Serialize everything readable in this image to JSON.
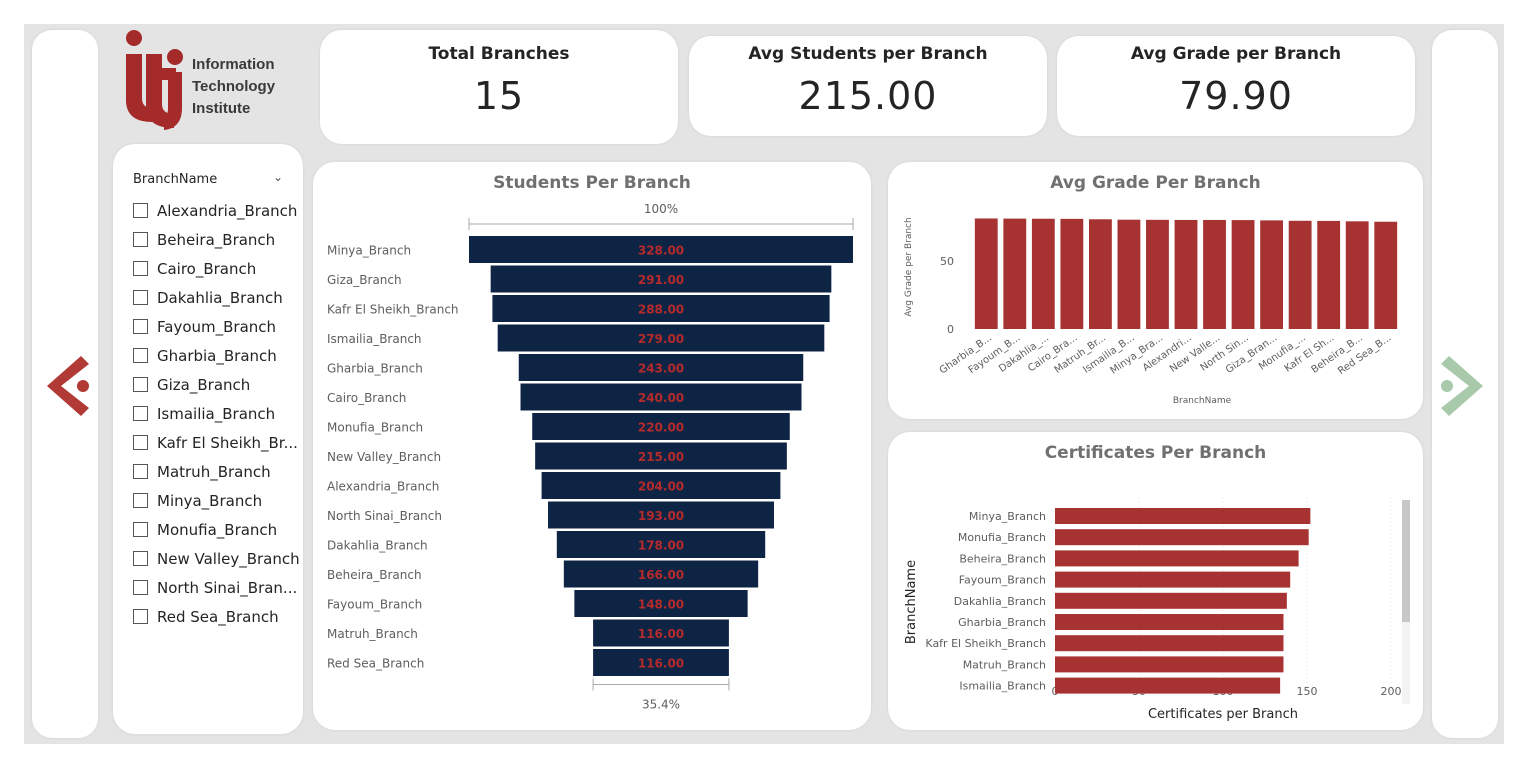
{
  "logo": {
    "line1": "Information",
    "line2": "Technology",
    "line3": "Institute"
  },
  "kpis": {
    "total_branches": {
      "title": "Total Branches",
      "value": "15"
    },
    "avg_students": {
      "title": "Avg Students per Branch",
      "value": "215.00"
    },
    "avg_grade": {
      "title": "Avg Grade per Branch",
      "value": "79.90"
    }
  },
  "slicer": {
    "header": "BranchName",
    "items": [
      "Alexandria_Branch",
      "Beheira_Branch",
      "Cairo_Branch",
      "Dakahlia_Branch",
      "Fayoum_Branch",
      "Gharbia_Branch",
      "Giza_Branch",
      "Ismailia_Branch",
      "Kafr El Sheikh_Br...",
      "Matruh_Branch",
      "Minya_Branch",
      "Monufia_Branch",
      "New Valley_Branch",
      "North Sinai_Bran...",
      "Red Sea_Branch"
    ]
  },
  "colors": {
    "funnel_bar": "#0e2445",
    "funnel_label": "#b52a2a",
    "bar": "#a63232",
    "nav_left": "#b23a36",
    "nav_right": "#a8c9aa"
  },
  "icons": {
    "nav_left": "chevron-left-icon",
    "nav_right": "chevron-right-icon",
    "dropdown": "chevron-down-icon"
  },
  "chart_data": [
    {
      "type": "funnel",
      "title": "Students Per Branch",
      "top_pct_label": "100%",
      "bottom_pct_label": "35.4%",
      "categories": [
        "Minya_Branch",
        "Giza_Branch",
        "Kafr El Sheikh_Branch",
        "Ismailia_Branch",
        "Gharbia_Branch",
        "Cairo_Branch",
        "Monufia_Branch",
        "New Valley_Branch",
        "Alexandria_Branch",
        "North Sinai_Branch",
        "Dakahlia_Branch",
        "Beheira_Branch",
        "Fayoum_Branch",
        "Matruh_Branch",
        "Red Sea_Branch"
      ],
      "values": [
        328,
        291,
        288,
        279,
        243,
        240,
        220,
        215,
        204,
        193,
        178,
        166,
        148,
        116,
        116
      ],
      "labels": [
        "328.00",
        "291.00",
        "288.00",
        "279.00",
        "243.00",
        "240.00",
        "220.00",
        "215.00",
        "204.00",
        "193.00",
        "178.00",
        "166.00",
        "148.00",
        "116.00",
        "116.00"
      ]
    },
    {
      "type": "bar",
      "title": "Avg Grade Per Branch",
      "xlabel": "BranchName",
      "ylabel": "Avg Grade per Branch",
      "categories": [
        "Gharbia_B...",
        "Fayoum_B...",
        "Dakahlia_...",
        "Cairo_Bra...",
        "Matruh_Br...",
        "Ismailia_B...",
        "Minya_Bra...",
        "Alexandri...",
        "New Valle...",
        "North Sin...",
        "Giza_Bran...",
        "Monufia_...",
        "Kafr El Sh...",
        "Beheira_B...",
        "Red Sea_B..."
      ],
      "values": [
        81.0,
        80.9,
        80.8,
        80.7,
        80.4,
        80.1,
        80.0,
        79.9,
        79.9,
        79.8,
        79.6,
        79.3,
        79.2,
        78.9,
        78.6
      ],
      "yticks": [
        0,
        50
      ],
      "ylim": [
        0,
        100
      ]
    },
    {
      "type": "bar",
      "orientation": "horizontal",
      "title": "Certificates Per Branch",
      "xlabel": "Certificates per Branch",
      "ylabel": "BranchName",
      "categories": [
        "Minya_Branch",
        "Monufia_Branch",
        "Beheira_Branch",
        "Fayoum_Branch",
        "Dakahlia_Branch",
        "Gharbia_Branch",
        "Kafr El Sheikh_Branch",
        "Matruh_Branch",
        "Ismailia_Branch"
      ],
      "values": [
        152,
        151,
        145,
        140,
        138,
        136,
        136,
        136,
        134
      ],
      "xticks": [
        0,
        50,
        100,
        150,
        200
      ],
      "xlim": [
        0,
        200
      ]
    }
  ]
}
